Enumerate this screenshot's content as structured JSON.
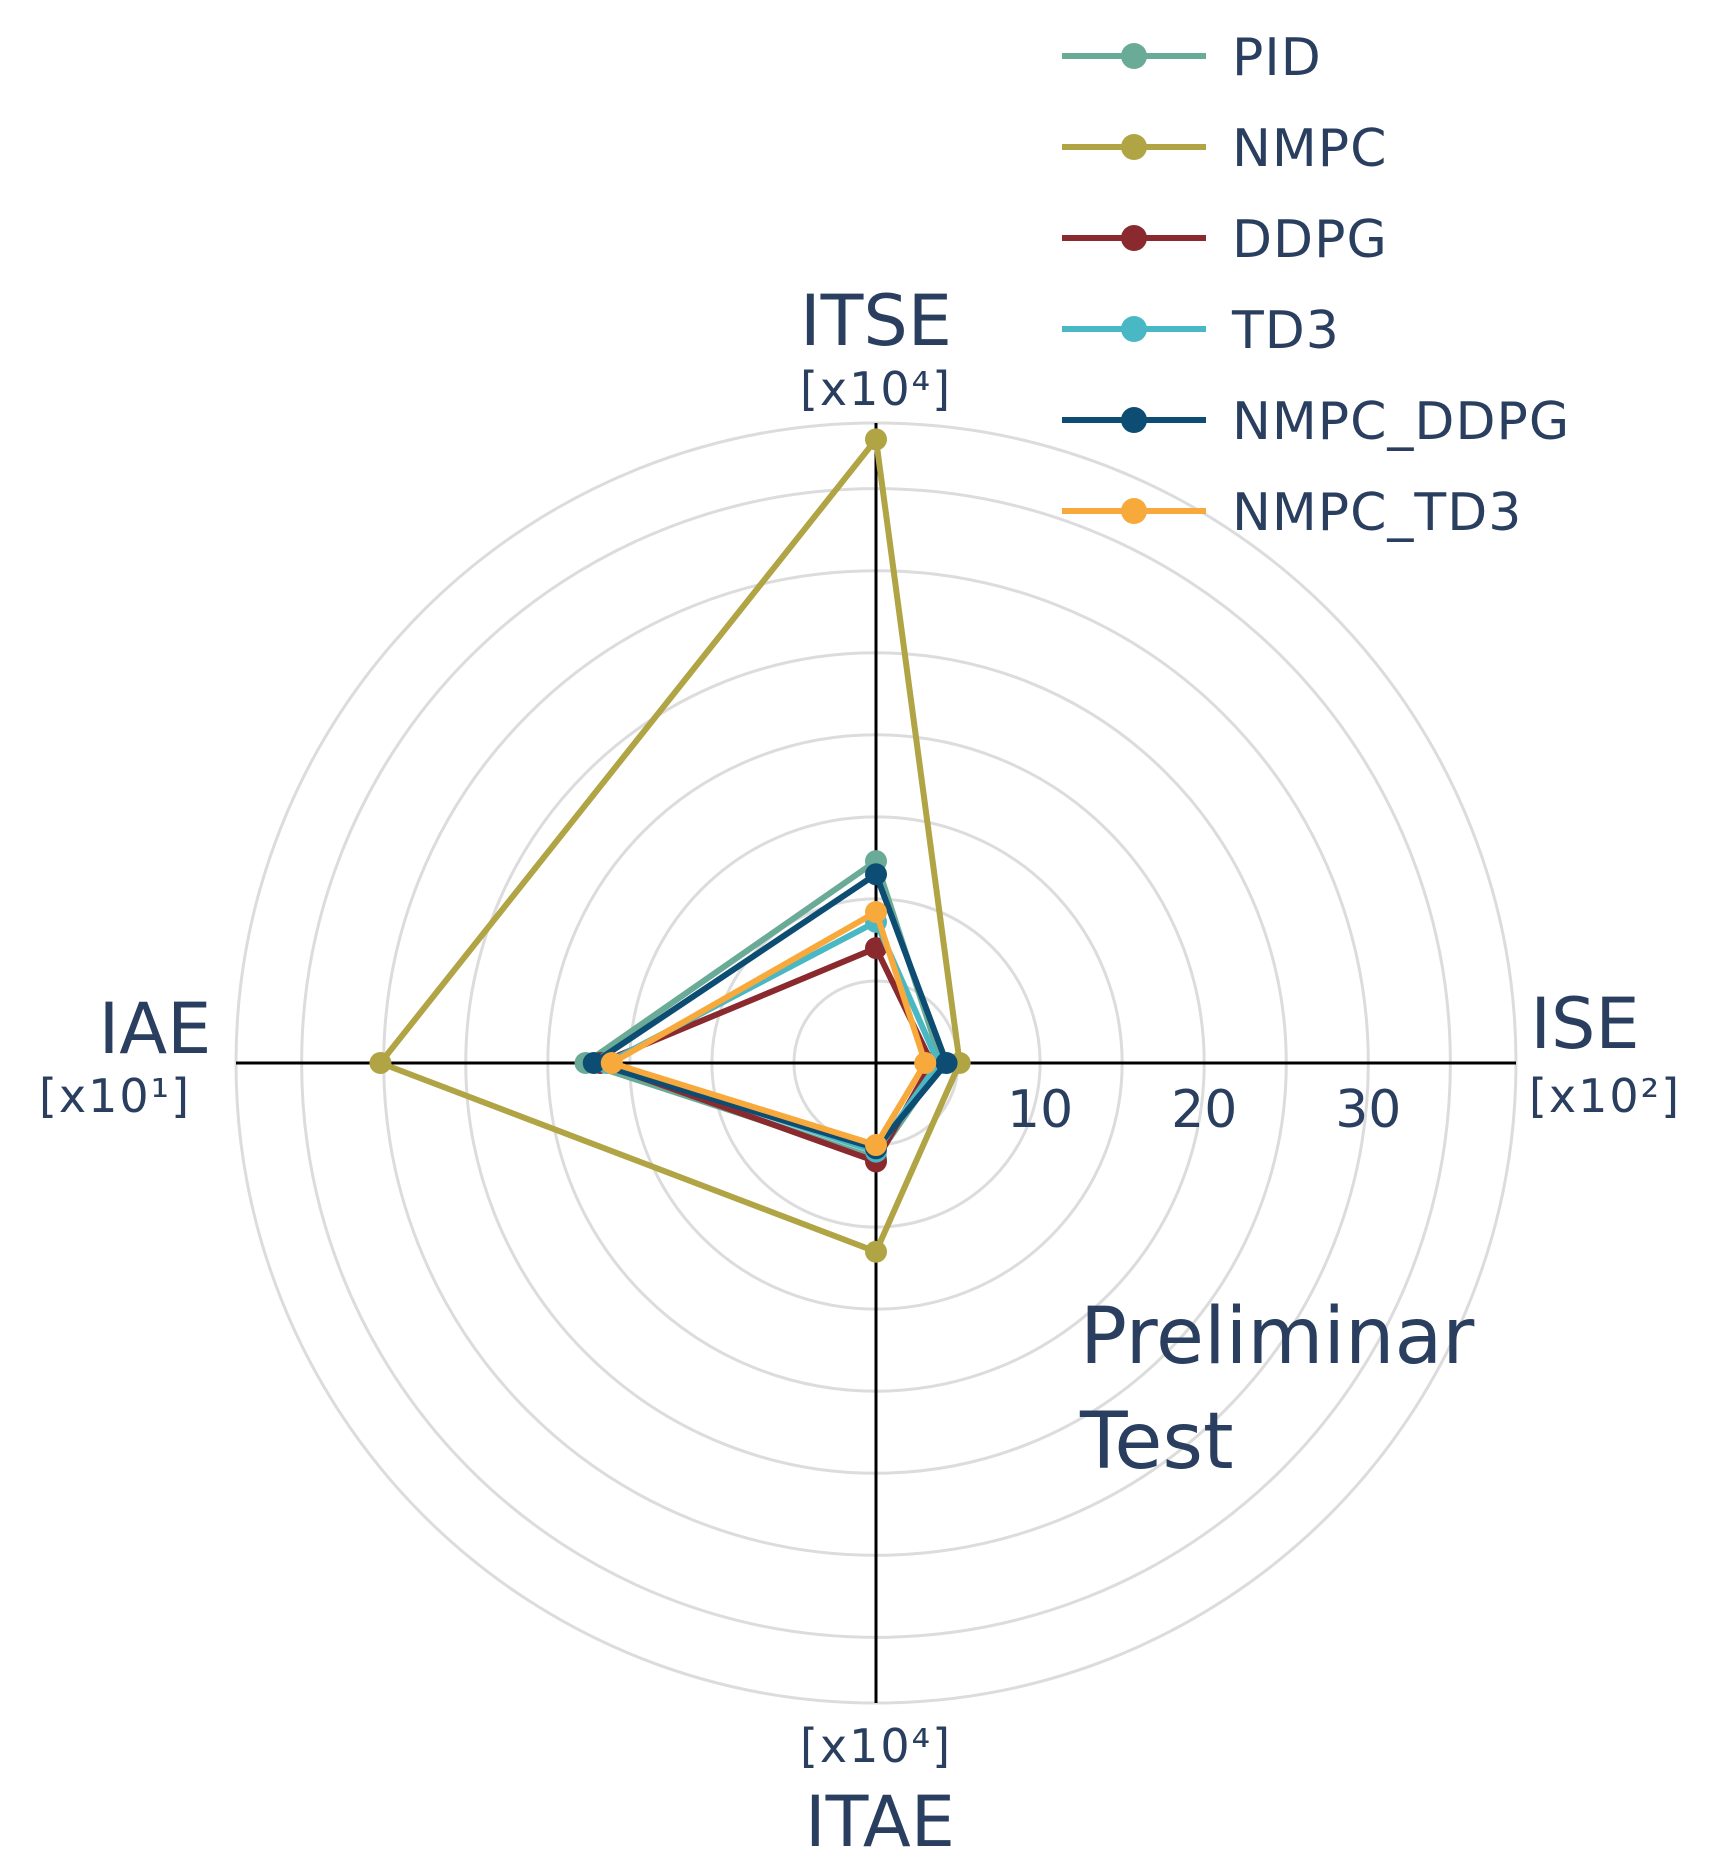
{
  "chart_data": {
    "type": "radar",
    "title": "",
    "axes": [
      {
        "name": "ISE",
        "unit": "[x10²]"
      },
      {
        "name": "ITSE",
        "unit": "[x10⁴]"
      },
      {
        "name": "IAE",
        "unit": "[x10¹]"
      },
      {
        "name": "ITAE",
        "unit": "[x10⁴]"
      }
    ],
    "radial_range": [
      0,
      39
    ],
    "radial_ticks": [
      10,
      20,
      30
    ],
    "grid_circles": [
      5,
      10,
      15,
      20,
      25,
      30,
      35,
      39
    ],
    "series": [
      {
        "name": "PID",
        "color": "#6aab97",
        "values": [
          4.0,
          12.3,
          17.7,
          5.8
        ]
      },
      {
        "name": "NMPC",
        "color": "#b0a444",
        "values": [
          5.1,
          38.0,
          30.2,
          11.5
        ]
      },
      {
        "name": "DDPG",
        "color": "#8b2a2e",
        "values": [
          3.4,
          7.0,
          16.8,
          6.0
        ]
      },
      {
        "name": "TD3",
        "color": "#4ab8c4",
        "values": [
          3.8,
          8.6,
          16.4,
          5.4
        ]
      },
      {
        "name": "NMPC_DDPG",
        "color": "#0d4c73",
        "values": [
          4.3,
          11.5,
          17.2,
          5.2
        ]
      },
      {
        "name": "NMPC_TD3",
        "color": "#f8a93c",
        "values": [
          3.0,
          9.2,
          16.1,
          5.0
        ]
      }
    ],
    "annotation": [
      "Preliminar",
      "Test"
    ],
    "legend_position": "top-right"
  }
}
